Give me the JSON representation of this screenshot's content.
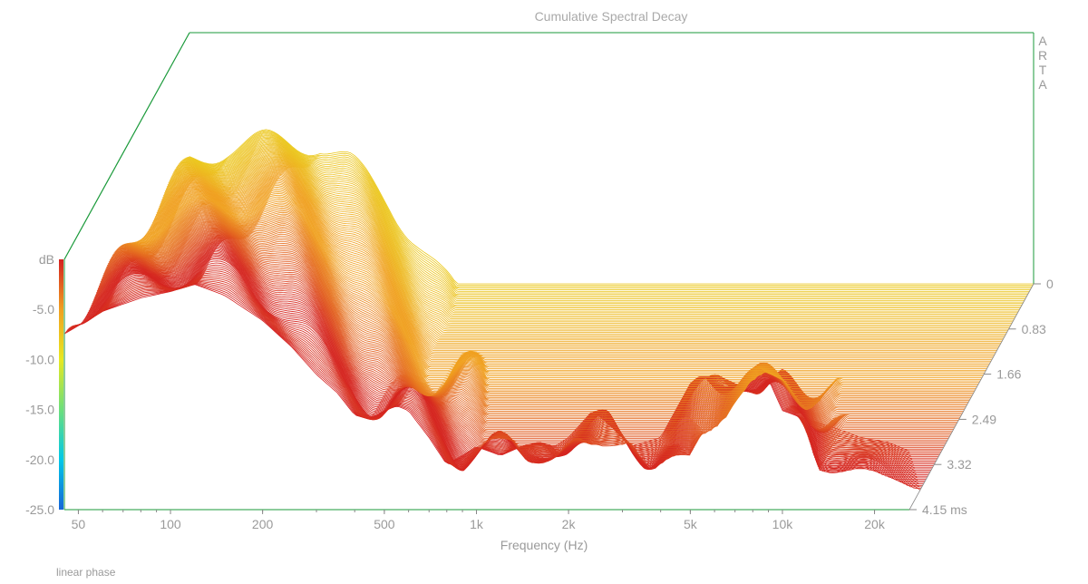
{
  "chart_data": {
    "type": "waterfall",
    "title": "Cumulative Spectral Decay",
    "watermark": [
      "A",
      "R",
      "T",
      "A"
    ],
    "xlabel": "Frequency (Hz)",
    "zlabel": "dB",
    "x_scale": "log",
    "xlim": [
      45,
      26000
    ],
    "x_ticks": [
      "50",
      "100",
      "200",
      "500",
      "1k",
      "2k",
      "5k",
      "10k",
      "20k"
    ],
    "x_tick_values": [
      50,
      100,
      200,
      500,
      1000,
      2000,
      5000,
      10000,
      20000
    ],
    "zlim": [
      -25,
      0
    ],
    "z_ticks": [
      "dB",
      "-5.0",
      "-10.0",
      "-15.0",
      "-20.0",
      "-25.0"
    ],
    "time_ticks": [
      "0",
      "0.83",
      "1.66",
      "2.49",
      "3.32",
      "4.15 ms"
    ],
    "time_values_ms": [
      0,
      0.83,
      1.66,
      2.49,
      3.32,
      4.15
    ],
    "time_unit": "ms",
    "colormap": [
      "#1565d8",
      "#00c8e8",
      "#6be07a",
      "#e8e820",
      "#f0a020",
      "#d42020"
    ],
    "surface_outline_color": "#1a9a3a",
    "initial_response_db": [
      [
        45,
        -5.5
      ],
      [
        60,
        -3
      ],
      [
        80,
        -1.5
      ],
      [
        100,
        -0.8
      ],
      [
        120,
        0
      ],
      [
        150,
        -1.2
      ],
      [
        200,
        -4
      ],
      [
        250,
        -7
      ],
      [
        300,
        -10
      ],
      [
        350,
        -12
      ],
      [
        400,
        -14.5
      ],
      [
        450,
        -15
      ],
      [
        500,
        -14
      ],
      [
        550,
        -13.5
      ],
      [
        600,
        -14
      ],
      [
        700,
        -17
      ],
      [
        800,
        -20
      ],
      [
        900,
        -19
      ],
      [
        1000,
        -18
      ],
      [
        1200,
        -19
      ],
      [
        1400,
        -18
      ],
      [
        1600,
        -17.5
      ],
      [
        1800,
        -18
      ],
      [
        2000,
        -17
      ],
      [
        2400,
        -14
      ],
      [
        2800,
        -16
      ],
      [
        3200,
        -18
      ],
      [
        4000,
        -17
      ],
      [
        5000,
        -11
      ],
      [
        6000,
        -10
      ],
      [
        7000,
        -11
      ],
      [
        8000,
        -12
      ],
      [
        9000,
        -10.5
      ],
      [
        10000,
        -14
      ],
      [
        12000,
        -15
      ],
      [
        15000,
        -16
      ],
      [
        18000,
        -17
      ],
      [
        22000,
        -17.5
      ],
      [
        26000,
        -18.5
      ]
    ],
    "annotation": "linear phase"
  }
}
